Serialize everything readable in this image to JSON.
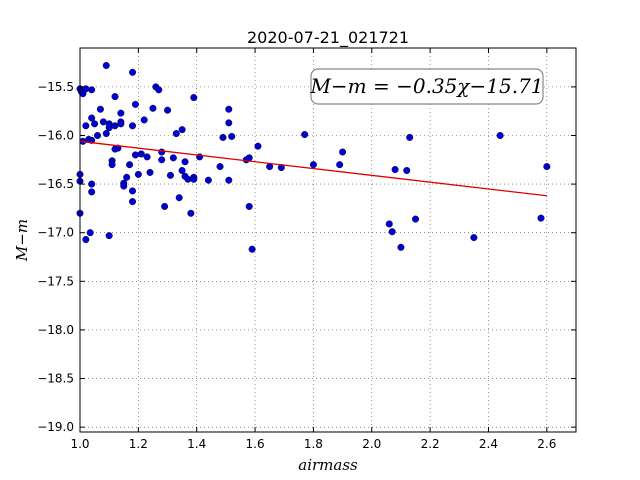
{
  "chart_data": {
    "type": "scatter",
    "title": "2020-07-21_021721",
    "xlabel": "airmass",
    "ylabel": "M−m",
    "xlim": [
      1.0,
      2.7
    ],
    "ylim": [
      -19.05,
      -15.1
    ],
    "invert_y_display": true,
    "x_ticks": [
      "1.0",
      "1.2",
      "1.4",
      "1.6",
      "1.8",
      "2.0",
      "2.2",
      "2.4",
      "2.6"
    ],
    "x_tick_values": [
      1.0,
      1.2,
      1.4,
      1.6,
      1.8,
      2.0,
      2.2,
      2.4,
      2.6
    ],
    "y_ticks": [
      "−15.5",
      "−16.0",
      "−16.5",
      "−17.0",
      "−17.5",
      "−18.0",
      "−18.5",
      "−19.0"
    ],
    "y_tick_values": [
      -15.5,
      -16.0,
      -16.5,
      -17.0,
      -17.5,
      -18.0,
      -18.5,
      -19.0
    ],
    "grid": true,
    "annotation": "M−m = −0.35χ−15.71",
    "point_color": "#0000cc",
    "fit_color": "#dd0000",
    "fit": {
      "slope": -0.35,
      "intercept": -15.71,
      "x_range": [
        1.0,
        2.6
      ]
    },
    "series": [
      {
        "x": [
          1.0,
          1.005,
          1.01,
          1.0,
          1.0,
          1.01,
          1.02,
          1.02,
          1.03,
          1.035,
          1.04,
          1.04,
          1.05,
          1.04,
          1.04,
          1.04,
          1.06,
          1.07,
          1.08,
          1.09,
          1.09,
          1.1,
          1.1,
          1.1,
          1.11,
          1.11,
          1.12,
          1.12,
          1.12,
          1.13,
          1.14,
          1.14,
          1.14,
          1.15,
          1.15,
          1.16,
          1.17,
          1.18,
          1.18,
          1.18,
          1.18,
          1.19,
          1.19,
          1.2,
          1.21,
          1.22,
          1.23,
          1.24,
          1.25,
          1.26,
          1.27,
          1.28,
          1.28,
          1.29,
          1.3,
          1.31,
          1.32,
          1.33,
          1.34,
          1.35,
          1.35,
          1.36,
          1.36,
          1.37,
          1.38,
          1.39,
          1.39,
          1.39,
          1.41,
          1.44,
          1.48,
          1.49,
          1.51,
          1.51,
          1.51,
          1.52,
          1.57,
          1.58,
          1.58,
          1.59,
          1.61,
          1.65,
          1.69,
          1.77,
          1.8,
          1.89,
          1.9,
          2.06,
          2.07,
          2.08,
          2.1,
          2.12,
          2.13,
          2.15,
          2.35,
          2.44,
          2.58,
          2.6,
          1.0,
          1.02
        ],
        "y": [
          -15.52,
          -15.55,
          -15.57,
          -16.4,
          -16.8,
          -16.06,
          -15.9,
          -17.07,
          -16.04,
          -17.0,
          -15.53,
          -15.82,
          -15.88,
          -16.05,
          -16.58,
          -16.5,
          -16.0,
          -15.73,
          -15.86,
          -15.98,
          -15.28,
          -17.03,
          -15.92,
          -15.88,
          -16.26,
          -16.3,
          -15.9,
          -15.6,
          -16.14,
          -16.13,
          -15.88,
          -15.86,
          -15.77,
          -16.52,
          -16.49,
          -16.43,
          -16.3,
          -16.68,
          -15.35,
          -15.9,
          -16.57,
          -16.2,
          -15.68,
          -16.4,
          -16.19,
          -15.84,
          -16.22,
          -16.38,
          -15.72,
          -15.5,
          -15.53,
          -16.25,
          -16.17,
          -16.73,
          -15.74,
          -16.41,
          -16.23,
          -15.98,
          -16.64,
          -15.94,
          -16.36,
          -16.27,
          -16.42,
          -16.45,
          -16.8,
          -15.61,
          -16.43,
          -16.45,
          -16.22,
          -16.46,
          -16.32,
          -16.02,
          -16.46,
          -15.73,
          -15.87,
          -16.01,
          -16.25,
          -16.23,
          -16.73,
          -17.17,
          -16.11,
          -16.32,
          -16.33,
          -15.99,
          -16.3,
          -16.3,
          -16.17,
          -16.91,
          -16.99,
          -16.35,
          -17.15,
          -16.36,
          -16.02,
          -16.86,
          -17.05,
          -16.0,
          -16.85,
          -16.32,
          -16.47,
          -15.52
        ]
      }
    ]
  }
}
